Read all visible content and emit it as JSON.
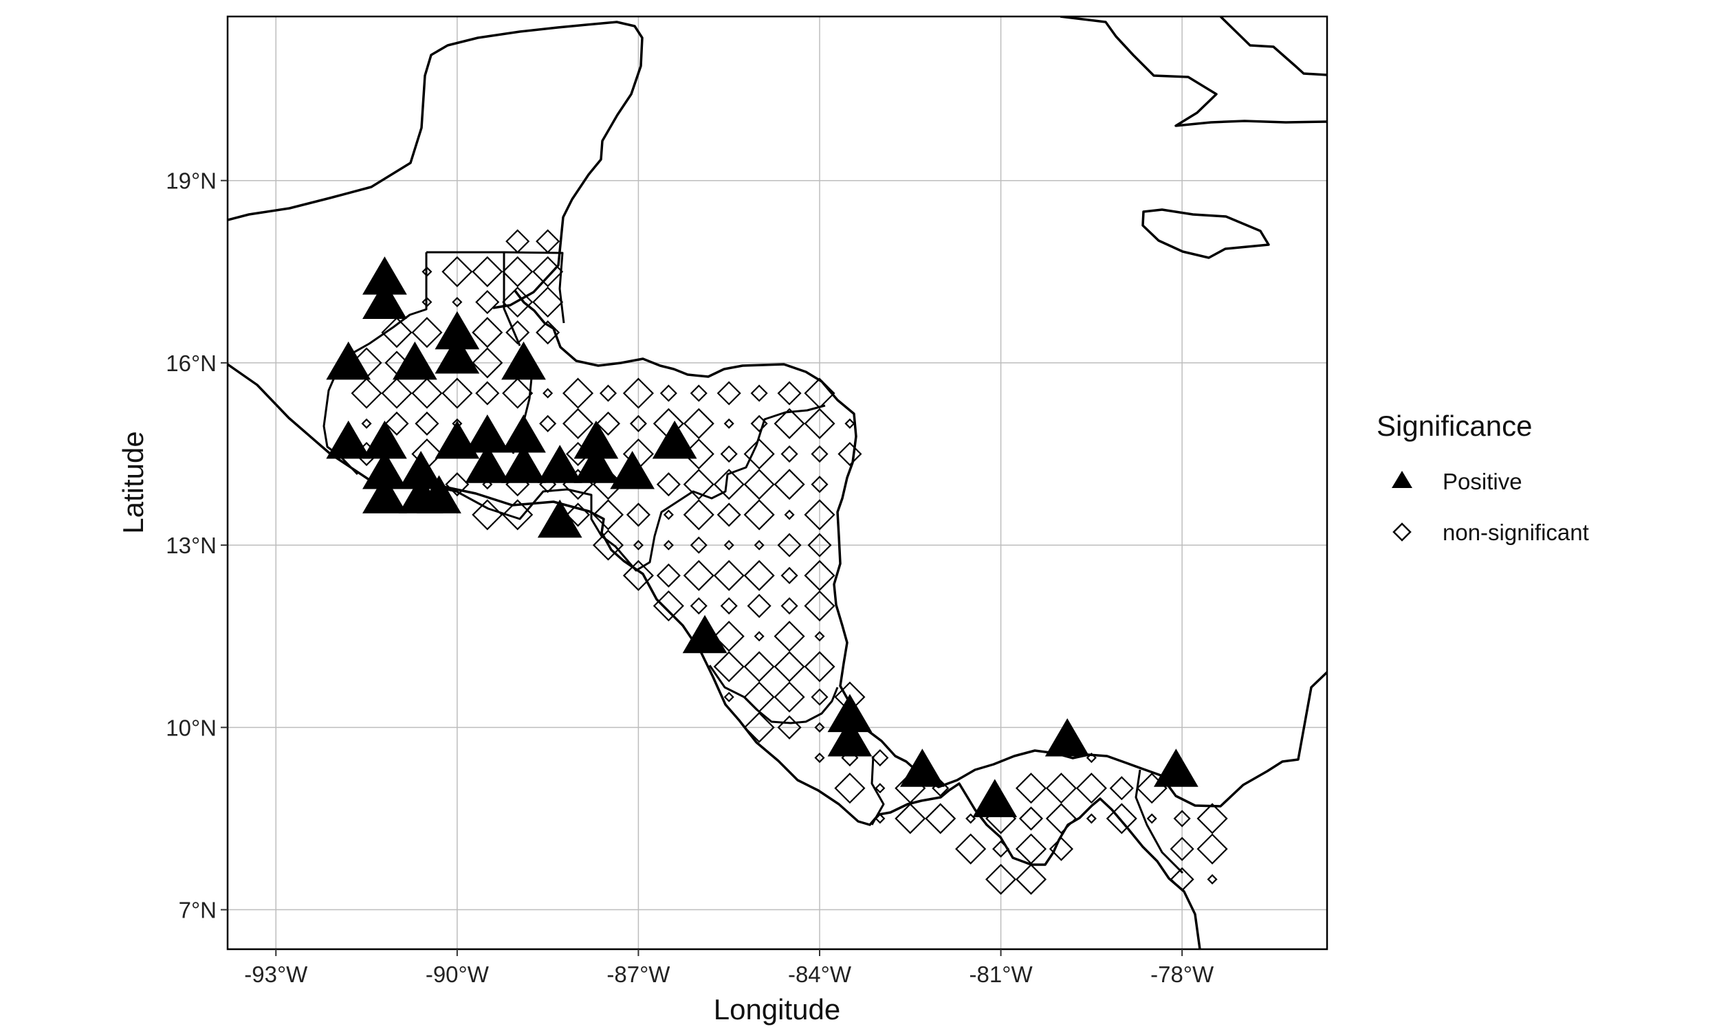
{
  "chart_data": {
    "type": "scatter",
    "xlabel": "Longitude",
    "ylabel": "Latitude",
    "xlim": [
      -93.8,
      -75.6
    ],
    "ylim": [
      6.35,
      21.7
    ],
    "x_ticks": [
      {
        "value": -93,
        "label": "-93°W"
      },
      {
        "value": -90,
        "label": "-90°W"
      },
      {
        "value": -87,
        "label": "-87°W"
      },
      {
        "value": -84,
        "label": "-84°W"
      },
      {
        "value": -81,
        "label": "-81°W"
      },
      {
        "value": -78,
        "label": "-78°W"
      }
    ],
    "y_ticks": [
      {
        "value": 7,
        "label": "7°N"
      },
      {
        "value": 10,
        "label": "10°N"
      },
      {
        "value": 13,
        "label": "13°N"
      },
      {
        "value": 16,
        "label": "16°N"
      },
      {
        "value": 19,
        "label": "19°N"
      }
    ],
    "grid": true,
    "legend": {
      "title": "Significance",
      "position": "right",
      "entries": [
        {
          "label": "Positive",
          "marker": "filled-triangle"
        },
        {
          "label": "non-significant",
          "marker": "open-diamond"
        }
      ]
    },
    "colors": {
      "marker": "#000000",
      "grid": "#bdbdbd",
      "background": "#ffffff"
    },
    "series": [
      {
        "name": "Positive",
        "marker": "filled-triangle",
        "points": [
          [
            -91.2,
            17.4
          ],
          [
            -91.2,
            17.0
          ],
          [
            -91.8,
            16.0
          ],
          [
            -90.7,
            16.0
          ],
          [
            -90.0,
            16.5
          ],
          [
            -90.0,
            16.1
          ],
          [
            -88.9,
            16.0
          ],
          [
            -91.8,
            14.7
          ],
          [
            -91.2,
            14.7
          ],
          [
            -91.2,
            14.2
          ],
          [
            -90.6,
            14.2
          ],
          [
            -91.2,
            13.8
          ],
          [
            -90.6,
            13.8
          ],
          [
            -90.3,
            13.8
          ],
          [
            -90.0,
            14.7
          ],
          [
            -89.5,
            14.8
          ],
          [
            -89.5,
            14.3
          ],
          [
            -88.9,
            14.8
          ],
          [
            -88.9,
            14.3
          ],
          [
            -88.3,
            14.3
          ],
          [
            -87.7,
            14.7
          ],
          [
            -87.7,
            14.3
          ],
          [
            -87.1,
            14.2
          ],
          [
            -86.4,
            14.7
          ],
          [
            -88.3,
            13.4
          ],
          [
            -85.9,
            11.5
          ],
          [
            -83.5,
            10.2
          ],
          [
            -83.5,
            9.8
          ],
          [
            -82.3,
            9.3
          ],
          [
            -81.1,
            8.8
          ],
          [
            -79.9,
            9.8
          ],
          [
            -78.1,
            9.3
          ]
        ]
      },
      {
        "name": "non-significant",
        "marker": "open-diamond",
        "region": [
          [
            -91.8,
            15.3
          ],
          [
            -91.8,
            16.1
          ],
          [
            -91.2,
            16.2
          ],
          [
            -91.0,
            17.7
          ],
          [
            -90.1,
            17.8
          ],
          [
            -89.2,
            17.8
          ],
          [
            -89.2,
            18.0
          ],
          [
            -88.6,
            18.4
          ],
          [
            -88.3,
            18.5
          ],
          [
            -88.2,
            17.7
          ],
          [
            -88.4,
            16.3
          ],
          [
            -88.9,
            15.8
          ],
          [
            -88.4,
            15.7
          ],
          [
            -87.8,
            15.8
          ],
          [
            -87.2,
            15.9
          ],
          [
            -86.5,
            15.9
          ],
          [
            -85.7,
            15.9
          ],
          [
            -85.0,
            16.0
          ],
          [
            -84.5,
            15.9
          ],
          [
            -84.0,
            15.7
          ],
          [
            -83.6,
            15.2
          ],
          [
            -83.3,
            15.0
          ],
          [
            -83.5,
            14.3
          ],
          [
            -83.6,
            13.2
          ],
          [
            -83.6,
            12.5
          ],
          [
            -83.7,
            11.8
          ],
          [
            -83.6,
            11.0
          ],
          [
            -83.4,
            10.5
          ],
          [
            -82.7,
            9.6
          ],
          [
            -82.2,
            9.2
          ],
          [
            -81.5,
            8.9
          ],
          [
            -80.8,
            9.1
          ],
          [
            -80.2,
            9.3
          ],
          [
            -79.6,
            9.6
          ],
          [
            -78.8,
            9.4
          ],
          [
            -78.3,
            9.2
          ],
          [
            -77.7,
            8.8
          ],
          [
            -77.2,
            8.6
          ],
          [
            -77.3,
            7.7
          ],
          [
            -77.7,
            7.2
          ],
          [
            -78.3,
            7.4
          ],
          [
            -78.4,
            8.0
          ],
          [
            -79.0,
            8.4
          ],
          [
            -79.7,
            8.3
          ],
          [
            -80.2,
            7.7
          ],
          [
            -80.6,
            7.3
          ],
          [
            -81.2,
            7.4
          ],
          [
            -81.6,
            7.9
          ],
          [
            -82.2,
            8.3
          ],
          [
            -82.9,
            8.2
          ],
          [
            -83.4,
            8.5
          ],
          [
            -84.1,
            9.2
          ],
          [
            -84.6,
            9.6
          ],
          [
            -85.3,
            9.9
          ],
          [
            -85.8,
            10.3
          ],
          [
            -85.9,
            11.0
          ],
          [
            -86.4,
            11.7
          ],
          [
            -87.0,
            12.5
          ],
          [
            -87.5,
            12.9
          ],
          [
            -88.2,
            13.2
          ],
          [
            -89.3,
            13.4
          ],
          [
            -90.1,
            13.7
          ],
          [
            -91.4,
            14.0
          ],
          [
            -92.1,
            14.6
          ]
        ]
      }
    ]
  }
}
